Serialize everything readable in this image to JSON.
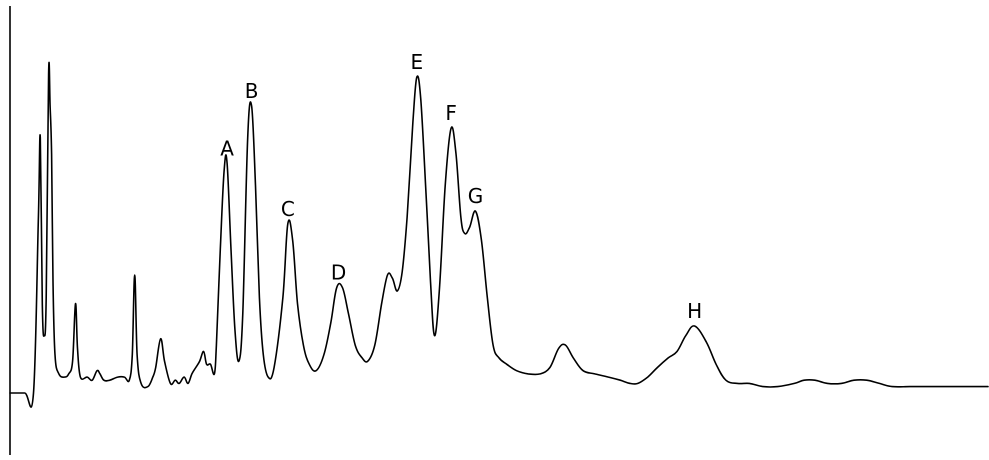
{
  "chart_data": {
    "type": "line",
    "title": "",
    "xlabel": "",
    "ylabel": "",
    "grid": false,
    "xlim": [
      0,
      100
    ],
    "ylim": [
      0,
      100
    ],
    "colors": {
      "trace": "#000000",
      "background": "#ffffff"
    },
    "series": [
      {
        "values": [
          [
            0,
            0
          ],
          [
            1.5,
            0
          ],
          [
            2.4,
            0
          ],
          [
            2.9,
            55
          ],
          [
            3.1,
            80
          ],
          [
            3.3,
            28
          ],
          [
            3.5,
            18
          ],
          [
            3.7,
            30
          ],
          [
            3.95,
            100
          ],
          [
            4.1,
            90
          ],
          [
            4.25,
            75
          ],
          [
            4.4,
            35
          ],
          [
            4.6,
            12
          ],
          [
            5.0,
            6
          ],
          [
            5.6,
            5
          ],
          [
            6.0,
            6
          ],
          [
            6.4,
            10
          ],
          [
            6.7,
            28
          ],
          [
            6.9,
            14
          ],
          [
            7.2,
            5
          ],
          [
            7.9,
            5
          ],
          [
            8.4,
            4
          ],
          [
            8.9,
            7
          ],
          [
            9.2,
            6
          ],
          [
            9.6,
            4
          ],
          [
            10.2,
            4
          ],
          [
            11.0,
            5
          ],
          [
            11.7,
            5
          ],
          [
            12.2,
            4
          ],
          [
            12.5,
            12
          ],
          [
            12.75,
            37
          ],
          [
            13.0,
            12
          ],
          [
            13.4,
            3
          ],
          [
            14.1,
            2
          ],
          [
            14.6,
            5
          ],
          [
            14.9,
            8
          ],
          [
            15.4,
            17
          ],
          [
            15.8,
            10
          ],
          [
            16.4,
            3
          ],
          [
            16.9,
            4
          ],
          [
            17.3,
            3
          ],
          [
            17.8,
            5
          ],
          [
            18.2,
            3
          ],
          [
            18.6,
            6
          ],
          [
            19.0,
            8
          ],
          [
            19.4,
            10
          ],
          [
            19.8,
            13
          ],
          [
            20.1,
            9
          ],
          [
            20.5,
            9
          ],
          [
            20.9,
            6
          ],
          [
            21.1,
            15
          ],
          [
            21.5,
            45
          ],
          [
            21.9,
            70
          ],
          [
            22.2,
            72
          ],
          [
            22.6,
            45
          ],
          [
            23.0,
            20
          ],
          [
            23.4,
            10
          ],
          [
            23.8,
            25
          ],
          [
            24.3,
            80
          ],
          [
            24.7,
            90
          ],
          [
            25.1,
            65
          ],
          [
            25.5,
            30
          ],
          [
            25.9,
            12
          ],
          [
            26.4,
            5
          ],
          [
            27.0,
            8
          ],
          [
            27.9,
            30
          ],
          [
            28.4,
            53
          ],
          [
            28.9,
            48
          ],
          [
            29.4,
            28
          ],
          [
            30.0,
            15
          ],
          [
            30.6,
            9
          ],
          [
            31.3,
            7
          ],
          [
            32.1,
            12
          ],
          [
            32.8,
            22
          ],
          [
            33.4,
            33
          ],
          [
            34.0,
            33
          ],
          [
            34.6,
            25
          ],
          [
            35.3,
            15
          ],
          [
            36.0,
            11
          ],
          [
            36.6,
            10
          ],
          [
            37.3,
            15
          ],
          [
            38.0,
            28
          ],
          [
            38.6,
            37
          ],
          [
            39.1,
            36
          ],
          [
            39.6,
            32
          ],
          [
            40.1,
            38
          ],
          [
            40.6,
            55
          ],
          [
            41.2,
            85
          ],
          [
            41.6,
            99
          ],
          [
            42.0,
            92
          ],
          [
            42.5,
            65
          ],
          [
            43.0,
            35
          ],
          [
            43.4,
            18
          ],
          [
            43.9,
            32
          ],
          [
            44.5,
            65
          ],
          [
            45.1,
            83
          ],
          [
            45.6,
            75
          ],
          [
            46.1,
            55
          ],
          [
            46.5,
            50
          ],
          [
            47.0,
            52
          ],
          [
            47.6,
            57
          ],
          [
            48.2,
            48
          ],
          [
            48.8,
            30
          ],
          [
            49.4,
            15
          ],
          [
            50.0,
            11
          ],
          [
            50.8,
            9
          ],
          [
            51.8,
            7
          ],
          [
            53.0,
            6
          ],
          [
            54.2,
            6
          ],
          [
            55.2,
            8
          ],
          [
            56.1,
            14
          ],
          [
            56.8,
            15
          ],
          [
            57.6,
            11
          ],
          [
            58.6,
            7
          ],
          [
            59.8,
            6
          ],
          [
            61.2,
            5
          ],
          [
            62.4,
            4
          ],
          [
            63.4,
            3
          ],
          [
            64.2,
            3
          ],
          [
            65.2,
            5
          ],
          [
            66.2,
            8
          ],
          [
            67.3,
            11
          ],
          [
            68.2,
            13
          ],
          [
            69.1,
            18
          ],
          [
            70.0,
            21
          ],
          [
            71.2,
            16
          ],
          [
            72.2,
            9
          ],
          [
            73.2,
            4
          ],
          [
            74.4,
            3
          ],
          [
            75.6,
            3
          ],
          [
            77.0,
            2
          ],
          [
            78.5,
            2
          ],
          [
            80.2,
            3
          ],
          [
            81.2,
            4
          ],
          [
            82.3,
            4
          ],
          [
            83.6,
            3
          ],
          [
            85.0,
            3
          ],
          [
            86.3,
            4
          ],
          [
            87.6,
            4
          ],
          [
            88.9,
            3
          ],
          [
            90.2,
            2
          ],
          [
            92.0,
            2
          ],
          [
            94.0,
            2
          ],
          [
            96.0,
            2
          ],
          [
            98.0,
            2
          ],
          [
            100.0,
            2
          ]
        ]
      }
    ],
    "annotations": [
      {
        "text": "A",
        "x": 22.2,
        "y": 72
      },
      {
        "text": "B",
        "x": 24.7,
        "y": 90
      },
      {
        "text": "C",
        "x": 28.4,
        "y": 53
      },
      {
        "text": "D",
        "x": 33.6,
        "y": 33
      },
      {
        "text": "E",
        "x": 41.6,
        "y": 99
      },
      {
        "text": "F",
        "x": 45.1,
        "y": 83
      },
      {
        "text": "G",
        "x": 47.6,
        "y": 57
      },
      {
        "text": "H",
        "x": 70.0,
        "y": 21
      }
    ]
  }
}
